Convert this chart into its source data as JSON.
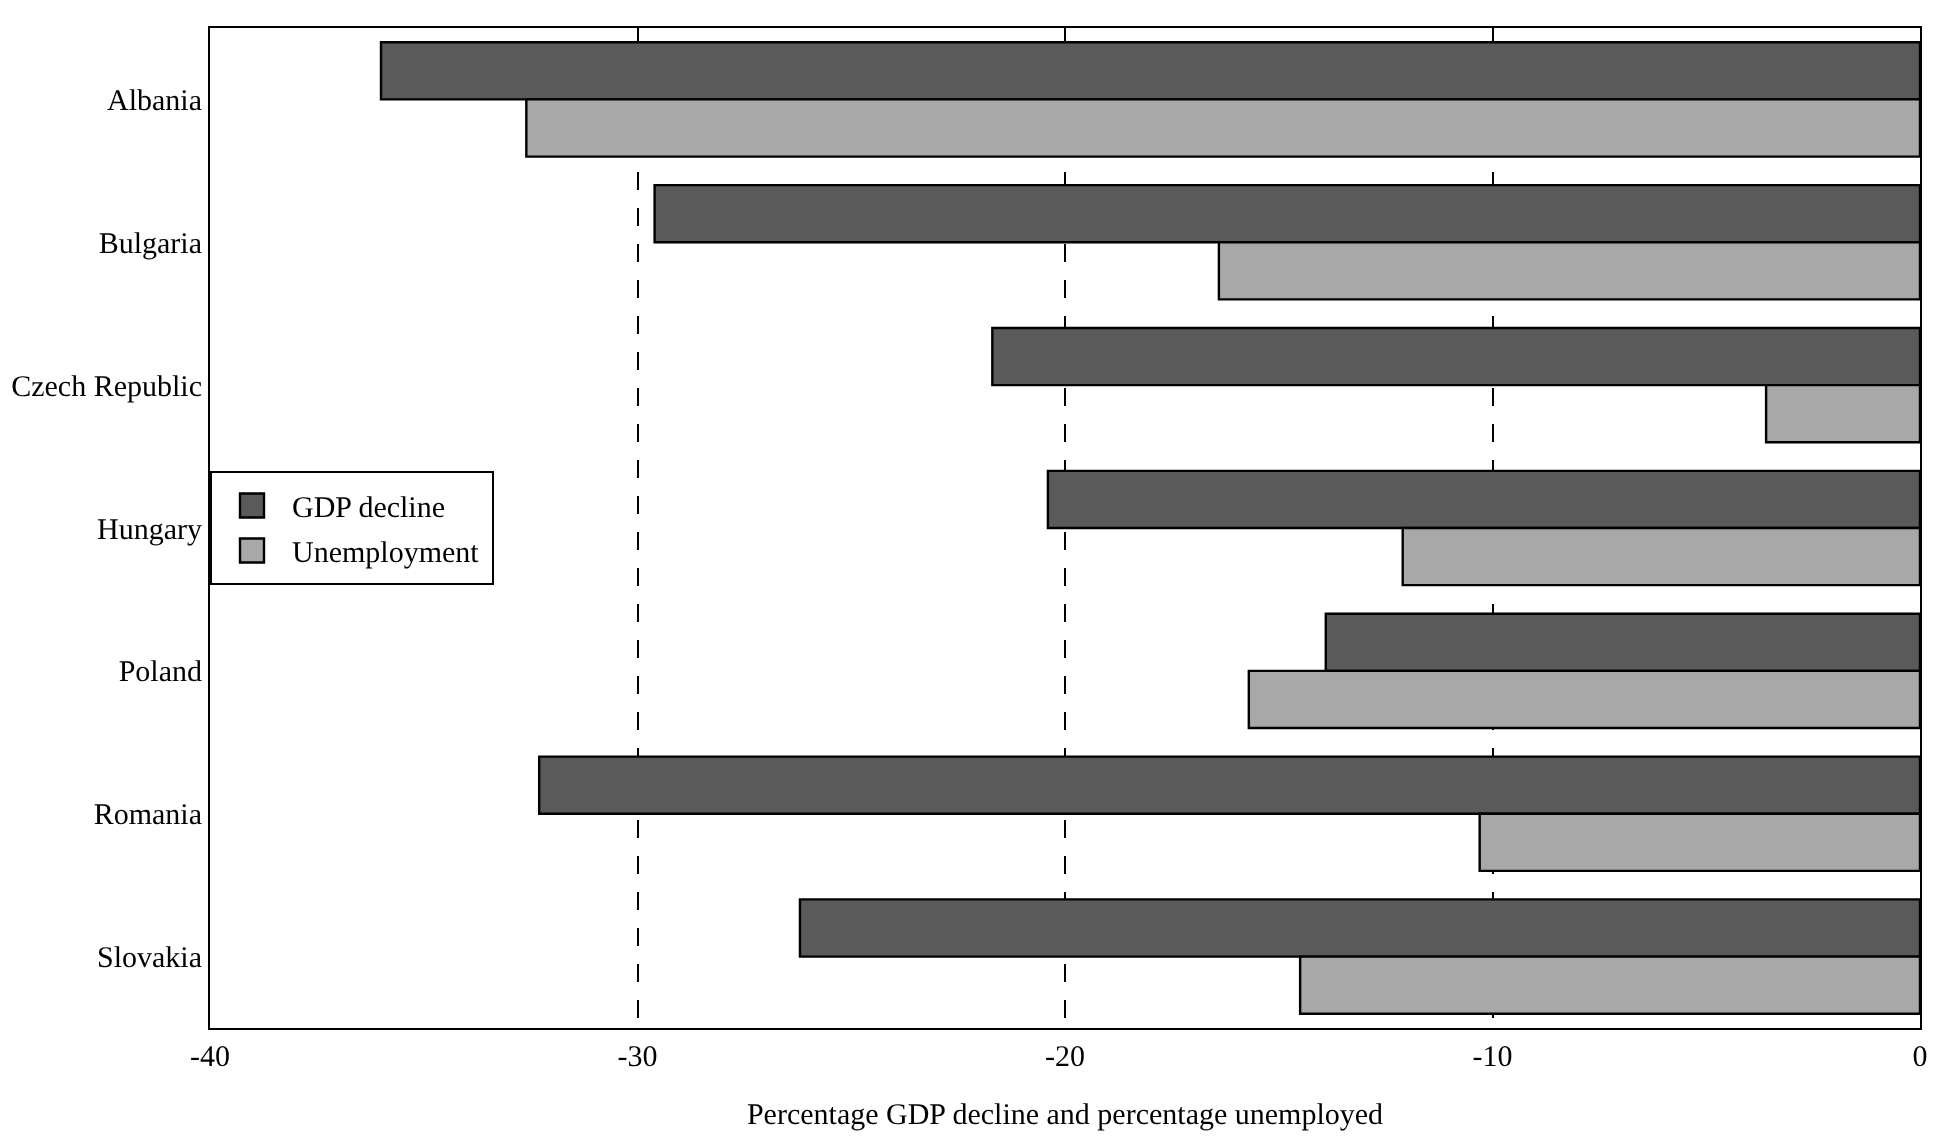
{
  "chart_data": {
    "type": "bar",
    "orientation": "horizontal",
    "xlabel": "Percentage GDP decline and percentage unemployed",
    "categories": [
      "Albania",
      "Bulgaria",
      "Czech Republic",
      "Hungary",
      "Poland",
      "Romania",
      "Slovakia"
    ],
    "series": [
      {
        "name": "GDP decline",
        "color": "#5a5a5a",
        "values": [
          -36.0,
          -29.6,
          -21.7,
          -20.4,
          -13.9,
          -32.3,
          -26.2
        ]
      },
      {
        "name": "Unemployment",
        "color": "#a8a8a8",
        "values": [
          -32.6,
          -16.4,
          -3.6,
          -12.1,
          -15.7,
          -10.3,
          -14.5
        ]
      }
    ],
    "xlim": [
      -40,
      0
    ],
    "xticks": [
      -40,
      -30,
      -20,
      -10,
      0
    ],
    "grid": "x",
    "legend": "left"
  }
}
